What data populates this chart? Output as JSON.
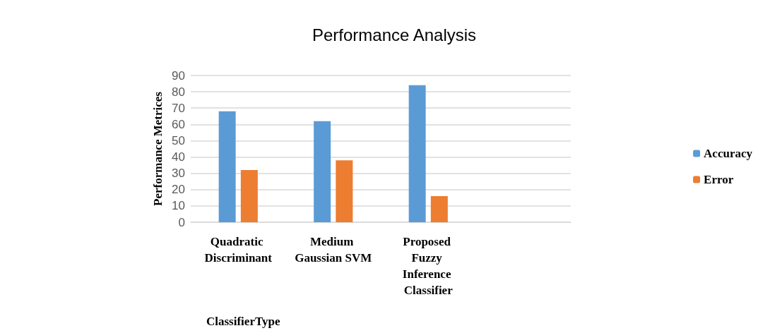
{
  "chart_data": {
    "type": "bar",
    "title": "Performance Analysis",
    "xlabel": "ClassifierType",
    "ylabel": "Performance Metrices",
    "categories": [
      "Quadratic Discriminant",
      "Medium Gaussian SVM",
      "Proposed Fuzzy Inference Classifier",
      null
    ],
    "series": [
      {
        "name": "Accuracy",
        "color": "#5b9bd5",
        "values": [
          68,
          62,
          84,
          null
        ]
      },
      {
        "name": "Error",
        "color": "#ed7d31",
        "values": [
          32,
          38,
          16,
          null
        ]
      }
    ],
    "ylim": [
      0,
      90
    ],
    "yticks": [
      0,
      10,
      20,
      30,
      40,
      50,
      60,
      70,
      80,
      90
    ],
    "grid": "y",
    "legend": "right"
  }
}
